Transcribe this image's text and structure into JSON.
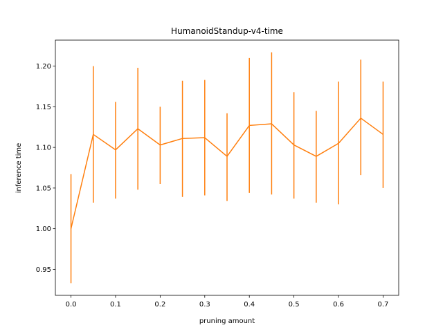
{
  "chart_data": {
    "type": "line",
    "title": "HumanoidStandup-v4-time",
    "xlabel": "pruning amount",
    "ylabel": "inference time",
    "x": [
      0.0,
      0.05,
      0.1,
      0.15,
      0.2,
      0.25,
      0.3,
      0.35,
      0.4,
      0.45,
      0.5,
      0.55,
      0.6,
      0.65,
      0.7
    ],
    "series": [
      {
        "values": [
          1.0,
          1.116,
          1.097,
          1.123,
          1.103,
          1.111,
          1.112,
          1.089,
          1.127,
          1.129,
          1.103,
          1.089,
          1.105,
          1.136,
          1.116
        ],
        "err_low": [
          0.933,
          1.032,
          1.037,
          1.048,
          1.055,
          1.039,
          1.041,
          1.034,
          1.044,
          1.042,
          1.037,
          1.032,
          1.03,
          1.066,
          1.05
        ],
        "err_high": [
          1.067,
          1.2,
          1.156,
          1.198,
          1.15,
          1.182,
          1.183,
          1.142,
          1.21,
          1.217,
          1.168,
          1.145,
          1.181,
          1.208,
          1.181
        ],
        "color": "#ff7f0e",
        "line_color": "#ff7f0e"
      }
    ],
    "xlim": [
      -0.035,
      0.735
    ],
    "ylim": [
      0.918,
      1.232
    ],
    "xticks": [
      "0.0",
      "0.1",
      "0.2",
      "0.3",
      "0.4",
      "0.5",
      "0.6",
      "0.7"
    ],
    "yticks": [
      "0.95",
      "1.00",
      "1.05",
      "1.10",
      "1.15",
      "1.20"
    ],
    "grid": false,
    "legend": "none"
  }
}
